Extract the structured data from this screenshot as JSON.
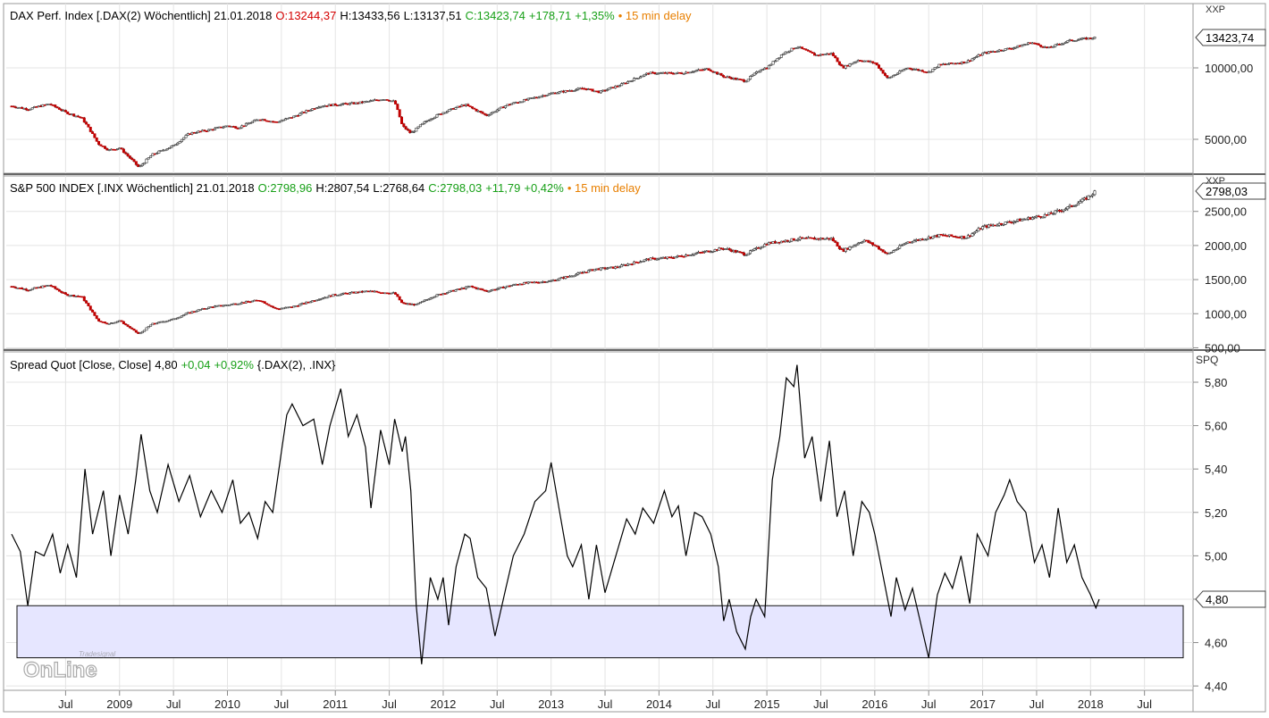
{
  "chart_data": [
    {
      "type": "candlestick",
      "panel": "dax",
      "title": "DAX Perf. Index [.DAX(2) Wöchentlich] 21.01.2018",
      "open_text": "O:13244,37",
      "high_text": "H:13433,56",
      "low_text": "L:13137,51",
      "close_text": "C:13423,74",
      "change_text": "+178,71",
      "change_pct_text": "+1,35%",
      "delay_text": "• 15 min delay",
      "last_value_label": "13423,74",
      "unit_label": "XXP",
      "scale": "log",
      "y_ticks": [
        "10000,00",
        "5000,00"
      ],
      "series": [
        {
          "x": 2008.0,
          "y": 6900
        },
        {
          "x": 2008.15,
          "y": 6700
        },
        {
          "x": 2008.35,
          "y": 7050
        },
        {
          "x": 2008.5,
          "y": 6500
        },
        {
          "x": 2008.65,
          "y": 6150
        },
        {
          "x": 2008.8,
          "y": 4800
        },
        {
          "x": 2008.9,
          "y": 4500
        },
        {
          "x": 2009.0,
          "y": 4600
        },
        {
          "x": 2009.18,
          "y": 3800
        },
        {
          "x": 2009.3,
          "y": 4300
        },
        {
          "x": 2009.5,
          "y": 4700
        },
        {
          "x": 2009.65,
          "y": 5300
        },
        {
          "x": 2009.85,
          "y": 5500
        },
        {
          "x": 2010.0,
          "y": 5700
        },
        {
          "x": 2010.1,
          "y": 5600
        },
        {
          "x": 2010.3,
          "y": 6100
        },
        {
          "x": 2010.45,
          "y": 5900
        },
        {
          "x": 2010.6,
          "y": 6200
        },
        {
          "x": 2010.85,
          "y": 6900
        },
        {
          "x": 2011.0,
          "y": 7000
        },
        {
          "x": 2011.2,
          "y": 7100
        },
        {
          "x": 2011.45,
          "y": 7400
        },
        {
          "x": 2011.55,
          "y": 7200
        },
        {
          "x": 2011.62,
          "y": 5700
        },
        {
          "x": 2011.7,
          "y": 5300
        },
        {
          "x": 2011.85,
          "y": 6000
        },
        {
          "x": 2012.0,
          "y": 6500
        },
        {
          "x": 2012.2,
          "y": 7000
        },
        {
          "x": 2012.4,
          "y": 6300
        },
        {
          "x": 2012.6,
          "y": 7000
        },
        {
          "x": 2012.85,
          "y": 7500
        },
        {
          "x": 2013.0,
          "y": 7800
        },
        {
          "x": 2013.3,
          "y": 8200
        },
        {
          "x": 2013.45,
          "y": 7900
        },
        {
          "x": 2013.65,
          "y": 8500
        },
        {
          "x": 2013.9,
          "y": 9500
        },
        {
          "x": 2014.0,
          "y": 9500
        },
        {
          "x": 2014.2,
          "y": 9500
        },
        {
          "x": 2014.45,
          "y": 9900
        },
        {
          "x": 2014.6,
          "y": 9200
        },
        {
          "x": 2014.8,
          "y": 8800
        },
        {
          "x": 2014.95,
          "y": 9900
        },
        {
          "x": 2015.0,
          "y": 10000
        },
        {
          "x": 2015.15,
          "y": 11500
        },
        {
          "x": 2015.28,
          "y": 12300
        },
        {
          "x": 2015.45,
          "y": 11300
        },
        {
          "x": 2015.6,
          "y": 11500
        },
        {
          "x": 2015.7,
          "y": 10000
        },
        {
          "x": 2015.85,
          "y": 10800
        },
        {
          "x": 2016.0,
          "y": 10500
        },
        {
          "x": 2016.12,
          "y": 9000
        },
        {
          "x": 2016.3,
          "y": 10000
        },
        {
          "x": 2016.5,
          "y": 9600
        },
        {
          "x": 2016.6,
          "y": 10300
        },
        {
          "x": 2016.85,
          "y": 10600
        },
        {
          "x": 2017.0,
          "y": 11500
        },
        {
          "x": 2017.3,
          "y": 12200
        },
        {
          "x": 2017.45,
          "y": 12800
        },
        {
          "x": 2017.6,
          "y": 12100
        },
        {
          "x": 2017.8,
          "y": 13000
        },
        {
          "x": 2017.9,
          "y": 13200
        },
        {
          "x": 2018.05,
          "y": 13424
        }
      ]
    },
    {
      "type": "candlestick",
      "panel": "spx",
      "title": "S&P 500 INDEX [.INX Wöchentlich] 21.01.2018",
      "open_text": "O:2798,96",
      "high_text": "H:2807,54",
      "low_text": "L:2768,64",
      "close_text": "C:2798,03",
      "change_text": "+11,79",
      "change_pct_text": "+0,42%",
      "delay_text": "• 15 min delay",
      "last_value_label": "2798,03",
      "unit_label": "XXP",
      "scale": "linear",
      "ylim": [
        480,
        3020
      ],
      "y_ticks": [
        "2500,00",
        "2000,00",
        "1500,00",
        "1000,00",
        "500,00"
      ],
      "series": [
        {
          "x": 2008.0,
          "y": 1400
        },
        {
          "x": 2008.15,
          "y": 1350
        },
        {
          "x": 2008.35,
          "y": 1420
        },
        {
          "x": 2008.5,
          "y": 1280
        },
        {
          "x": 2008.65,
          "y": 1250
        },
        {
          "x": 2008.8,
          "y": 900
        },
        {
          "x": 2008.9,
          "y": 850
        },
        {
          "x": 2009.0,
          "y": 900
        },
        {
          "x": 2009.18,
          "y": 700
        },
        {
          "x": 2009.3,
          "y": 850
        },
        {
          "x": 2009.5,
          "y": 920
        },
        {
          "x": 2009.65,
          "y": 1020
        },
        {
          "x": 2009.85,
          "y": 1100
        },
        {
          "x": 2010.0,
          "y": 1130
        },
        {
          "x": 2010.3,
          "y": 1200
        },
        {
          "x": 2010.45,
          "y": 1070
        },
        {
          "x": 2010.6,
          "y": 1100
        },
        {
          "x": 2010.85,
          "y": 1220
        },
        {
          "x": 2011.0,
          "y": 1280
        },
        {
          "x": 2011.3,
          "y": 1330
        },
        {
          "x": 2011.55,
          "y": 1300
        },
        {
          "x": 2011.62,
          "y": 1150
        },
        {
          "x": 2011.75,
          "y": 1130
        },
        {
          "x": 2011.9,
          "y": 1250
        },
        {
          "x": 2012.0,
          "y": 1300
        },
        {
          "x": 2012.25,
          "y": 1400
        },
        {
          "x": 2012.4,
          "y": 1330
        },
        {
          "x": 2012.7,
          "y": 1440
        },
        {
          "x": 2013.0,
          "y": 1480
        },
        {
          "x": 2013.4,
          "y": 1650
        },
        {
          "x": 2013.6,
          "y": 1680
        },
        {
          "x": 2013.9,
          "y": 1800
        },
        {
          "x": 2014.1,
          "y": 1820
        },
        {
          "x": 2014.4,
          "y": 1900
        },
        {
          "x": 2014.6,
          "y": 1960
        },
        {
          "x": 2014.8,
          "y": 1870
        },
        {
          "x": 2015.0,
          "y": 2030
        },
        {
          "x": 2015.3,
          "y": 2100
        },
        {
          "x": 2015.6,
          "y": 2100
        },
        {
          "x": 2015.7,
          "y": 1920
        },
        {
          "x": 2015.9,
          "y": 2080
        },
        {
          "x": 2016.0,
          "y": 2000
        },
        {
          "x": 2016.12,
          "y": 1870
        },
        {
          "x": 2016.3,
          "y": 2050
        },
        {
          "x": 2016.6,
          "y": 2150
        },
        {
          "x": 2016.85,
          "y": 2120
        },
        {
          "x": 2017.0,
          "y": 2270
        },
        {
          "x": 2017.3,
          "y": 2360
        },
        {
          "x": 2017.6,
          "y": 2450
        },
        {
          "x": 2017.8,
          "y": 2560
        },
        {
          "x": 2017.95,
          "y": 2680
        },
        {
          "x": 2018.05,
          "y": 2798
        }
      ]
    },
    {
      "type": "line",
      "panel": "spread",
      "title": "Spread Quot [Close, Close]",
      "value_text": "4,80",
      "change_text": "+0,04",
      "change_pct_text": "+0,92%",
      "params_text": "{.DAX(2), .INX}",
      "last_value_label": "4,80",
      "unit_label": "SPQ",
      "ylim": [
        4.38,
        5.94
      ],
      "y_ticks": [
        "5,80",
        "5,60",
        "5,40",
        "5,20",
        "5,00",
        "4,80",
        "4,60",
        "4,40"
      ],
      "highlight_band": [
        4.53,
        4.77
      ],
      "series": [
        {
          "x": 2008.0,
          "y": 5.1
        },
        {
          "x": 2008.08,
          "y": 5.02
        },
        {
          "x": 2008.15,
          "y": 4.77
        },
        {
          "x": 2008.22,
          "y": 5.02
        },
        {
          "x": 2008.3,
          "y": 5.0
        },
        {
          "x": 2008.38,
          "y": 5.1
        },
        {
          "x": 2008.45,
          "y": 4.92
        },
        {
          "x": 2008.52,
          "y": 5.05
        },
        {
          "x": 2008.6,
          "y": 4.9
        },
        {
          "x": 2008.68,
          "y": 5.4
        },
        {
          "x": 2008.75,
          "y": 5.1
        },
        {
          "x": 2008.85,
          "y": 5.3
        },
        {
          "x": 2008.92,
          "y": 5.0
        },
        {
          "x": 2009.0,
          "y": 5.28
        },
        {
          "x": 2009.08,
          "y": 5.1
        },
        {
          "x": 2009.15,
          "y": 5.35
        },
        {
          "x": 2009.2,
          "y": 5.56
        },
        {
          "x": 2009.28,
          "y": 5.3
        },
        {
          "x": 2009.35,
          "y": 5.2
        },
        {
          "x": 2009.45,
          "y": 5.42
        },
        {
          "x": 2009.55,
          "y": 5.25
        },
        {
          "x": 2009.65,
          "y": 5.37
        },
        {
          "x": 2009.75,
          "y": 5.18
        },
        {
          "x": 2009.85,
          "y": 5.3
        },
        {
          "x": 2009.95,
          "y": 5.2
        },
        {
          "x": 2010.05,
          "y": 5.35
        },
        {
          "x": 2010.12,
          "y": 5.15
        },
        {
          "x": 2010.2,
          "y": 5.2
        },
        {
          "x": 2010.28,
          "y": 5.08
        },
        {
          "x": 2010.35,
          "y": 5.25
        },
        {
          "x": 2010.42,
          "y": 5.2
        },
        {
          "x": 2010.5,
          "y": 5.48
        },
        {
          "x": 2010.55,
          "y": 5.65
        },
        {
          "x": 2010.6,
          "y": 5.7
        },
        {
          "x": 2010.7,
          "y": 5.6
        },
        {
          "x": 2010.8,
          "y": 5.63
        },
        {
          "x": 2010.88,
          "y": 5.42
        },
        {
          "x": 2010.95,
          "y": 5.6
        },
        {
          "x": 2011.05,
          "y": 5.77
        },
        {
          "x": 2011.12,
          "y": 5.55
        },
        {
          "x": 2011.2,
          "y": 5.65
        },
        {
          "x": 2011.28,
          "y": 5.5
        },
        {
          "x": 2011.33,
          "y": 5.22
        },
        {
          "x": 2011.42,
          "y": 5.58
        },
        {
          "x": 2011.5,
          "y": 5.42
        },
        {
          "x": 2011.55,
          "y": 5.63
        },
        {
          "x": 2011.62,
          "y": 5.48
        },
        {
          "x": 2011.65,
          "y": 5.55
        },
        {
          "x": 2011.7,
          "y": 5.3
        },
        {
          "x": 2011.75,
          "y": 4.77
        },
        {
          "x": 2011.8,
          "y": 4.5
        },
        {
          "x": 2011.88,
          "y": 4.9
        },
        {
          "x": 2011.95,
          "y": 4.8
        },
        {
          "x": 2012.0,
          "y": 4.9
        },
        {
          "x": 2012.05,
          "y": 4.68
        },
        {
          "x": 2012.12,
          "y": 4.95
        },
        {
          "x": 2012.2,
          "y": 5.1
        },
        {
          "x": 2012.25,
          "y": 5.08
        },
        {
          "x": 2012.32,
          "y": 4.9
        },
        {
          "x": 2012.4,
          "y": 4.85
        },
        {
          "x": 2012.48,
          "y": 4.63
        },
        {
          "x": 2012.58,
          "y": 4.85
        },
        {
          "x": 2012.65,
          "y": 5.0
        },
        {
          "x": 2012.75,
          "y": 5.1
        },
        {
          "x": 2012.85,
          "y": 5.25
        },
        {
          "x": 2012.95,
          "y": 5.3
        },
        {
          "x": 2013.0,
          "y": 5.43
        },
        {
          "x": 2013.08,
          "y": 5.2
        },
        {
          "x": 2013.15,
          "y": 5.0
        },
        {
          "x": 2013.2,
          "y": 4.95
        },
        {
          "x": 2013.28,
          "y": 5.05
        },
        {
          "x": 2013.35,
          "y": 4.8
        },
        {
          "x": 2013.42,
          "y": 5.05
        },
        {
          "x": 2013.5,
          "y": 4.83
        },
        {
          "x": 2013.6,
          "y": 5.0
        },
        {
          "x": 2013.7,
          "y": 5.17
        },
        {
          "x": 2013.78,
          "y": 5.1
        },
        {
          "x": 2013.85,
          "y": 5.22
        },
        {
          "x": 2013.95,
          "y": 5.15
        },
        {
          "x": 2014.05,
          "y": 5.3
        },
        {
          "x": 2014.12,
          "y": 5.18
        },
        {
          "x": 2014.18,
          "y": 5.23
        },
        {
          "x": 2014.25,
          "y": 5.0
        },
        {
          "x": 2014.33,
          "y": 5.2
        },
        {
          "x": 2014.4,
          "y": 5.18
        },
        {
          "x": 2014.48,
          "y": 5.1
        },
        {
          "x": 2014.55,
          "y": 4.95
        },
        {
          "x": 2014.6,
          "y": 4.7
        },
        {
          "x": 2014.65,
          "y": 4.8
        },
        {
          "x": 2014.72,
          "y": 4.65
        },
        {
          "x": 2014.8,
          "y": 4.57
        },
        {
          "x": 2014.85,
          "y": 4.72
        },
        {
          "x": 2014.9,
          "y": 4.8
        },
        {
          "x": 2014.98,
          "y": 4.72
        },
        {
          "x": 2015.05,
          "y": 5.35
        },
        {
          "x": 2015.12,
          "y": 5.55
        },
        {
          "x": 2015.18,
          "y": 5.82
        },
        {
          "x": 2015.25,
          "y": 5.78
        },
        {
          "x": 2015.28,
          "y": 5.88
        },
        {
          "x": 2015.35,
          "y": 5.45
        },
        {
          "x": 2015.42,
          "y": 5.55
        },
        {
          "x": 2015.5,
          "y": 5.25
        },
        {
          "x": 2015.58,
          "y": 5.53
        },
        {
          "x": 2015.65,
          "y": 5.18
        },
        {
          "x": 2015.72,
          "y": 5.3
        },
        {
          "x": 2015.8,
          "y": 5.0
        },
        {
          "x": 2015.88,
          "y": 5.25
        },
        {
          "x": 2015.95,
          "y": 5.2
        },
        {
          "x": 2016.0,
          "y": 5.1
        },
        {
          "x": 2016.08,
          "y": 4.9
        },
        {
          "x": 2016.15,
          "y": 4.72
        },
        {
          "x": 2016.2,
          "y": 4.9
        },
        {
          "x": 2016.28,
          "y": 4.75
        },
        {
          "x": 2016.35,
          "y": 4.85
        },
        {
          "x": 2016.42,
          "y": 4.7
        },
        {
          "x": 2016.5,
          "y": 4.53
        },
        {
          "x": 2016.58,
          "y": 4.82
        },
        {
          "x": 2016.65,
          "y": 4.92
        },
        {
          "x": 2016.72,
          "y": 4.85
        },
        {
          "x": 2016.8,
          "y": 5.0
        },
        {
          "x": 2016.88,
          "y": 4.78
        },
        {
          "x": 2016.95,
          "y": 5.1
        },
        {
          "x": 2017.05,
          "y": 5.0
        },
        {
          "x": 2017.12,
          "y": 5.2
        },
        {
          "x": 2017.2,
          "y": 5.28
        },
        {
          "x": 2017.25,
          "y": 5.35
        },
        {
          "x": 2017.32,
          "y": 5.25
        },
        {
          "x": 2017.4,
          "y": 5.2
        },
        {
          "x": 2017.48,
          "y": 4.97
        },
        {
          "x": 2017.55,
          "y": 5.05
        },
        {
          "x": 2017.62,
          "y": 4.9
        },
        {
          "x": 2017.7,
          "y": 5.22
        },
        {
          "x": 2017.78,
          "y": 4.97
        },
        {
          "x": 2017.85,
          "y": 5.05
        },
        {
          "x": 2017.92,
          "y": 4.9
        },
        {
          "x": 2018.0,
          "y": 4.82
        },
        {
          "x": 2018.05,
          "y": 4.76
        },
        {
          "x": 2018.08,
          "y": 4.8
        }
      ]
    }
  ],
  "x_axis": {
    "tick_labels": [
      {
        "x": 2008.5,
        "label": "Jul"
      },
      {
        "x": 2009.0,
        "label": "2009"
      },
      {
        "x": 2009.5,
        "label": "Jul"
      },
      {
        "x": 2010.0,
        "label": "2010"
      },
      {
        "x": 2010.5,
        "label": "Jul"
      },
      {
        "x": 2011.0,
        "label": "2011"
      },
      {
        "x": 2011.5,
        "label": "Jul"
      },
      {
        "x": 2012.0,
        "label": "2012"
      },
      {
        "x": 2012.5,
        "label": "Jul"
      },
      {
        "x": 2013.0,
        "label": "2013"
      },
      {
        "x": 2013.5,
        "label": "Jul"
      },
      {
        "x": 2014.0,
        "label": "2014"
      },
      {
        "x": 2014.5,
        "label": "Jul"
      },
      {
        "x": 2015.0,
        "label": "2015"
      },
      {
        "x": 2015.5,
        "label": "Jul"
      },
      {
        "x": 2016.0,
        "label": "2016"
      },
      {
        "x": 2016.5,
        "label": "Jul"
      },
      {
        "x": 2017.0,
        "label": "2017"
      },
      {
        "x": 2017.5,
        "label": "Jul"
      },
      {
        "x": 2018.0,
        "label": "2018"
      },
      {
        "x": 2018.5,
        "label": "Jul"
      }
    ],
    "xlim": [
      2007.95,
      2018.95
    ]
  },
  "watermark": {
    "brand": "Tradesignal",
    "text": "OnLine"
  },
  "colors": {
    "up": "#555555",
    "down": "#c00000",
    "line": "#000000",
    "band_fill": "#e6e6ff",
    "grid": "#e4e4e4",
    "red": "#d40000",
    "green": "#18a018",
    "orange": "#e87f00"
  }
}
